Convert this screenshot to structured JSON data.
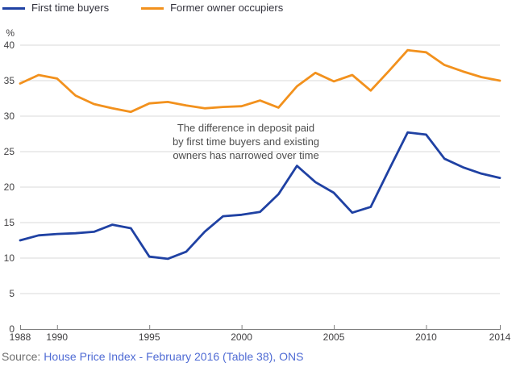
{
  "colors": {
    "first_time_buyers": "#1f41a3",
    "former_owner_occupiers": "#f2911d",
    "gridline": "#d9d9d9",
    "axis": "#7f7f7f",
    "tick_text": "#414042",
    "annotation_text": "#4d4d4d",
    "source_text": "#6d6d6d",
    "link": "#4f6bd4"
  },
  "chart_data": {
    "type": "line",
    "title": "",
    "xlabel": "",
    "ylabel": "%",
    "xlim": [
      1988,
      2014
    ],
    "ylim": [
      0,
      40
    ],
    "grid": "horizontal",
    "legend_position": "top-left",
    "x_ticks": [
      1988,
      1990,
      1995,
      2000,
      2005,
      2010,
      2014
    ],
    "y_ticks": [
      0,
      5,
      10,
      15,
      20,
      25,
      30,
      35,
      40
    ],
    "x": [
      1988,
      1989,
      1990,
      1991,
      1992,
      1993,
      1994,
      1995,
      1996,
      1997,
      1998,
      1999,
      2000,
      2001,
      2002,
      2003,
      2004,
      2005,
      2006,
      2007,
      2008,
      2009,
      2010,
      2011,
      2012,
      2013,
      2014
    ],
    "series": [
      {
        "name": "First time buyers",
        "color": "#1f41a3",
        "values": [
          12.5,
          13.2,
          13.4,
          13.5,
          13.7,
          14.7,
          14.2,
          10.2,
          9.9,
          10.9,
          13.7,
          15.9,
          16.1,
          16.5,
          19.0,
          23.0,
          20.7,
          19.2,
          16.4,
          17.2,
          22.5,
          27.7,
          27.4,
          24.0,
          22.8,
          21.9,
          21.3
        ]
      },
      {
        "name": "Former owner occupiers",
        "color": "#f2911d",
        "values": [
          34.6,
          35.8,
          35.3,
          32.9,
          31.7,
          31.1,
          30.6,
          31.8,
          32.0,
          31.5,
          31.1,
          31.3,
          31.4,
          32.2,
          31.2,
          34.2,
          36.1,
          34.9,
          35.8,
          33.6,
          36.4,
          39.3,
          39.0,
          37.2,
          36.3,
          35.5,
          35.0
        ]
      }
    ],
    "annotation": {
      "lines": [
        "The difference in deposit paid",
        "by first time buyers and existing",
        "owners has narrowed over time"
      ]
    }
  },
  "source": {
    "prefix": "Source:",
    "link_text": "House Price Index - February 2016 (Table 38), ONS"
  }
}
